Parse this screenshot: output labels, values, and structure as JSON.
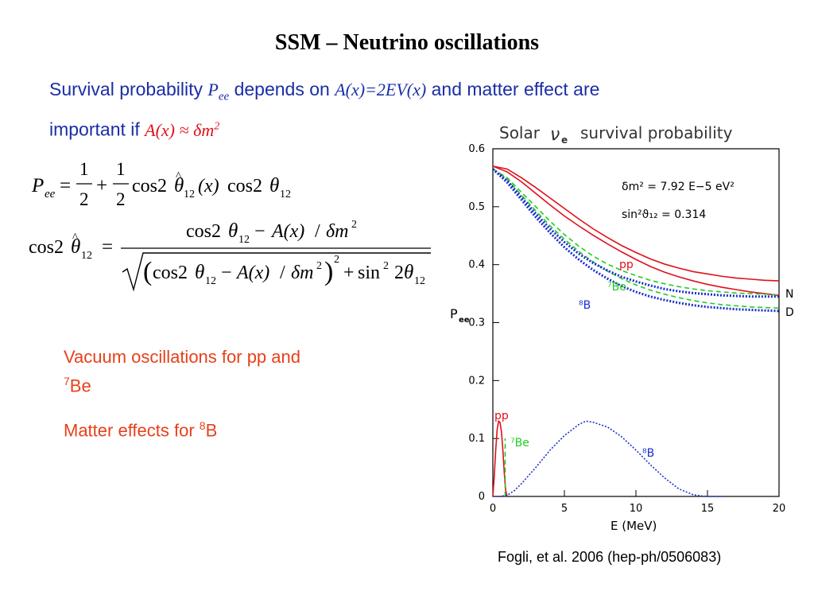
{
  "slide": {
    "title": "SSM – Neutrino oscillations",
    "intro": {
      "p1": "Survival probability ",
      "pee_P": "P",
      "pee_sub": "ee",
      "p2": " depends on ",
      "ax": "A(x)=2EV(x)",
      "p3": " and matter effect are",
      "p4": "important if ",
      "cond": "A(x) ≈ δm",
      "cond_sup": "2"
    },
    "bullets": {
      "b1_line1": "Vacuum oscillations for pp and",
      "b1_sup": "7",
      "b1_line2": "Be",
      "b2_text": "Matter effects for ",
      "b2_sup": "8",
      "b2_end": "B"
    },
    "credit": "Fogli, et al. 2006 (hep-ph/0506083)"
  },
  "equations": {
    "eq1": {
      "P": "P",
      "ee": "ee",
      "eq": "=",
      "one": "1",
      "two": "2",
      "plus": "+",
      "cos2": "cos2",
      "theta": "θ",
      "hat": "^",
      "sub12": "12",
      "x": "(x)"
    },
    "eq2": {
      "cos2": "cos2",
      "theta": "θ",
      "sub12": "12",
      "eq": "=",
      "minus": "−",
      "ax": "A(x)",
      "slash": "/",
      "dm": "δm",
      "sq": "2",
      "plus": "+",
      "sin": "sin",
      "two2": "2"
    }
  },
  "chart_data": {
    "type": "line",
    "title_parts": [
      "Solar",
      "ν",
      "e",
      "survival probability"
    ],
    "xlabel": "E (MeV)",
    "ylabel_main": "P",
    "ylabel_sub": "ee",
    "xlim": [
      0,
      20
    ],
    "ylim": [
      0,
      0.6
    ],
    "xticks": [
      0,
      5,
      10,
      15,
      20
    ],
    "yticks": [
      0,
      0.1,
      0.2,
      0.3,
      0.4,
      0.5,
      0.6
    ],
    "annotations": {
      "dm2": "δm² = 7.92 E−5 eV²",
      "sin2": "sin²ϑ₁₂ = 0.314",
      "pp": "pp",
      "be7": "⁷Be",
      "b8": "⁸B",
      "N": "N",
      "D": "D",
      "pp_spec": "pp",
      "be7_spec": "⁷Be",
      "b8_spec": "⁸B"
    },
    "colors": {
      "pp": "#e0101a",
      "be7": "#22cc22",
      "b8": "#1a2ed0"
    },
    "series": [
      {
        "name": "pp",
        "variant": "N",
        "x": [
          0,
          1,
          2,
          3,
          4,
          5,
          6,
          7,
          8,
          9,
          10,
          11,
          12,
          13,
          14,
          15,
          16,
          17,
          18,
          19,
          20
        ],
        "y": [
          0.57,
          0.565,
          0.55,
          0.533,
          0.515,
          0.497,
          0.479,
          0.462,
          0.447,
          0.433,
          0.421,
          0.41,
          0.401,
          0.394,
          0.388,
          0.384,
          0.38,
          0.377,
          0.375,
          0.373,
          0.372
        ]
      },
      {
        "name": "pp",
        "variant": "D",
        "x": [
          0,
          1,
          2,
          3,
          4,
          5,
          6,
          7,
          8,
          9,
          10,
          11,
          12,
          13,
          14,
          15,
          16,
          17,
          18,
          19,
          20
        ],
        "y": [
          0.57,
          0.56,
          0.543,
          0.523,
          0.503,
          0.484,
          0.467,
          0.451,
          0.436,
          0.422,
          0.409,
          0.397,
          0.387,
          0.379,
          0.372,
          0.366,
          0.361,
          0.357,
          0.353,
          0.35,
          0.347
        ]
      },
      {
        "name": "⁷Be",
        "variant": "N",
        "x": [
          0,
          1,
          2,
          3,
          4,
          5,
          6,
          7,
          8,
          9,
          10,
          11,
          12,
          13,
          14,
          15,
          16,
          17,
          18,
          19,
          20
        ],
        "y": [
          0.565,
          0.55,
          0.525,
          0.5,
          0.475,
          0.452,
          0.432,
          0.415,
          0.401,
          0.39,
          0.381,
          0.373,
          0.367,
          0.362,
          0.358,
          0.355,
          0.353,
          0.351,
          0.35,
          0.349,
          0.348
        ]
      },
      {
        "name": "⁷Be",
        "variant": "D",
        "x": [
          0,
          1,
          2,
          3,
          4,
          5,
          6,
          7,
          8,
          9,
          10,
          11,
          12,
          13,
          14,
          15,
          16,
          17,
          18,
          19,
          20
        ],
        "y": [
          0.565,
          0.547,
          0.52,
          0.493,
          0.467,
          0.444,
          0.423,
          0.405,
          0.389,
          0.376,
          0.365,
          0.356,
          0.349,
          0.343,
          0.338,
          0.334,
          0.331,
          0.329,
          0.327,
          0.326,
          0.325
        ]
      },
      {
        "name": "⁸B",
        "variant": "N",
        "x": [
          0,
          1,
          2,
          3,
          4,
          5,
          6,
          7,
          8,
          9,
          10,
          11,
          12,
          13,
          14,
          15,
          16,
          17,
          18,
          19,
          20
        ],
        "y": [
          0.565,
          0.545,
          0.516,
          0.488,
          0.462,
          0.439,
          0.419,
          0.403,
          0.39,
          0.379,
          0.371,
          0.364,
          0.358,
          0.354,
          0.351,
          0.349,
          0.347,
          0.346,
          0.345,
          0.345,
          0.345
        ]
      },
      {
        "name": "⁸B",
        "variant": "D",
        "x": [
          0,
          1,
          2,
          3,
          4,
          5,
          6,
          7,
          8,
          9,
          10,
          11,
          12,
          13,
          14,
          15,
          16,
          17,
          18,
          19,
          20
        ],
        "y": [
          0.565,
          0.542,
          0.512,
          0.482,
          0.455,
          0.43,
          0.409,
          0.391,
          0.376,
          0.363,
          0.353,
          0.345,
          0.339,
          0.334,
          0.33,
          0.327,
          0.325,
          0.323,
          0.322,
          0.321,
          0.32
        ]
      },
      {
        "name": "pp spectrum",
        "x": [
          0,
          0.1,
          0.2,
          0.3,
          0.4,
          0.5,
          0.6,
          0.7,
          0.8,
          0.9,
          1.0
        ],
        "y": [
          0,
          0.035,
          0.08,
          0.115,
          0.13,
          0.128,
          0.112,
          0.08,
          0.04,
          0.01,
          0
        ]
      },
      {
        "name": "⁷Be line",
        "x": [
          0.86,
          0.86
        ],
        "y": [
          0,
          0.1
        ]
      },
      {
        "name": "⁸B spectrum",
        "x": [
          0,
          0.5,
          1,
          1.5,
          2,
          3,
          4,
          5,
          6,
          6.5,
          7,
          8,
          9,
          10,
          11,
          12,
          13,
          14,
          14.5,
          15,
          16
        ],
        "y": [
          0,
          0,
          0.002,
          0.01,
          0.022,
          0.05,
          0.08,
          0.105,
          0.124,
          0.13,
          0.128,
          0.12,
          0.103,
          0.08,
          0.055,
          0.032,
          0.013,
          0.003,
          0.001,
          0,
          0
        ]
      }
    ]
  }
}
